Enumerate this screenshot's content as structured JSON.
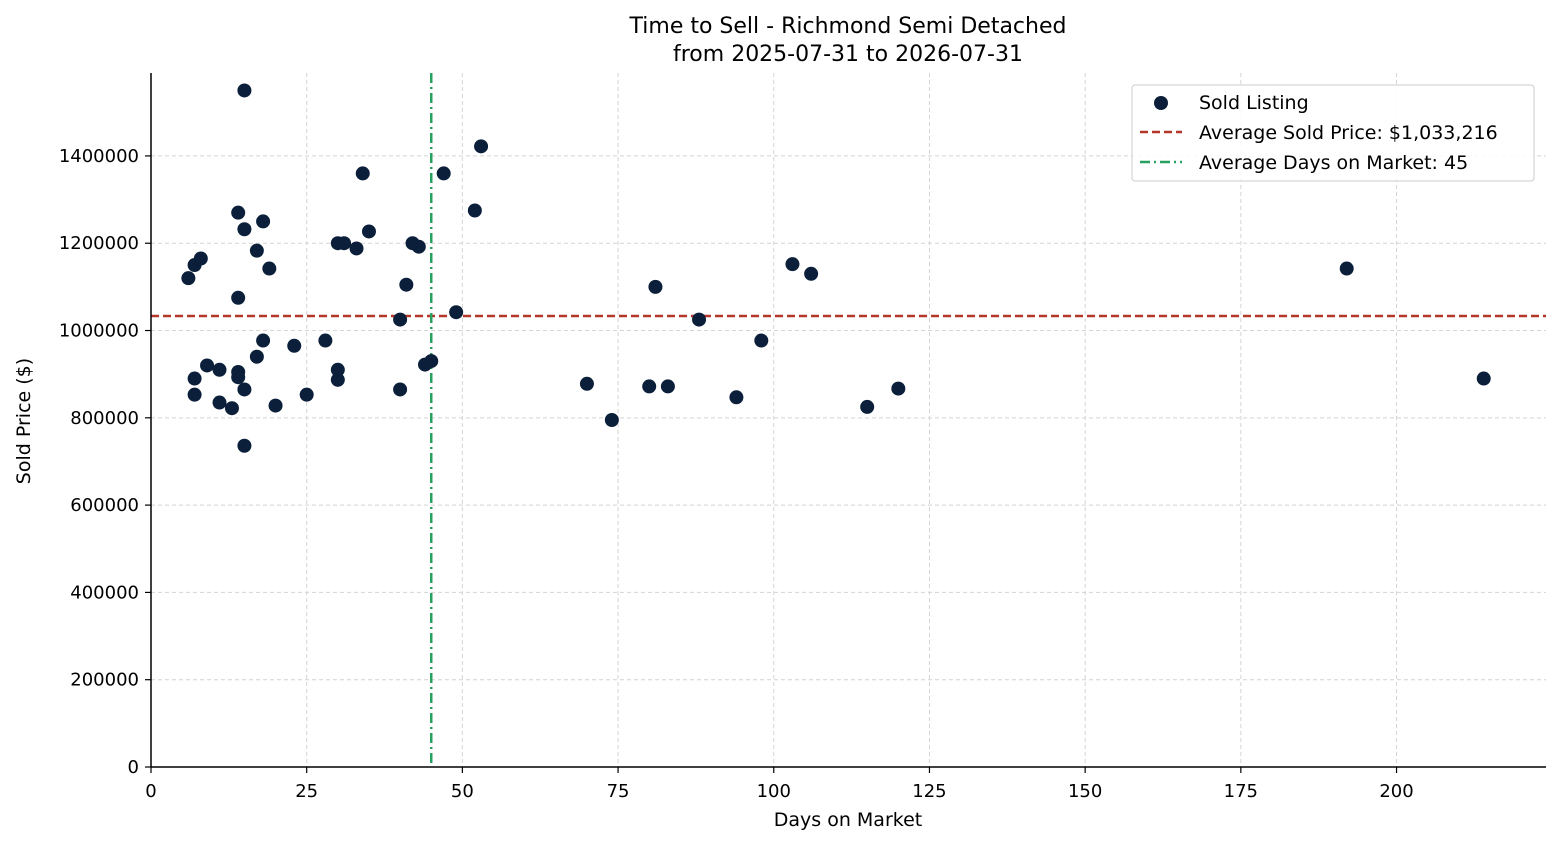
{
  "colors": {
    "point": "#0b1f3a",
    "avg_price_line": "#b5372a",
    "avg_days_line": "#27a060",
    "grid": "#d4d4d4",
    "axis": "#000000"
  },
  "chart_data": {
    "type": "scatter",
    "title": "Time to Sell - Richmond Semi Detached",
    "subtitle": "from 2025-07-31 to 2026-07-31",
    "xlabel": "Days on Market",
    "ylabel": "Sold Price ($)",
    "xlim": [
      0,
      224
    ],
    "ylim": [
      0,
      1590000
    ],
    "xticks": [
      0,
      25,
      50,
      75,
      100,
      125,
      150,
      175,
      200
    ],
    "yticks": [
      0,
      200000,
      400000,
      600000,
      800000,
      1000000,
      1200000,
      1400000
    ],
    "grid": true,
    "legend_position": "top-right",
    "legend": [
      {
        "label": "Sold Listing",
        "kind": "marker"
      },
      {
        "label": "Average Sold Price: $1,033,216",
        "kind": "dashed"
      },
      {
        "label": "Average Days on Market: 45",
        "kind": "dashdot"
      }
    ],
    "avg_price": 1033216,
    "avg_days": 45,
    "series": [
      {
        "name": "Sold Listing",
        "points": [
          [
            6,
            1120000
          ],
          [
            7,
            1150000
          ],
          [
            8,
            1165000
          ],
          [
            7,
            890000
          ],
          [
            7,
            853000
          ],
          [
            9,
            920000
          ],
          [
            11,
            910000
          ],
          [
            11,
            835000
          ],
          [
            13,
            822000
          ],
          [
            14,
            1270000
          ],
          [
            14,
            1075000
          ],
          [
            14,
            905000
          ],
          [
            14,
            893000
          ],
          [
            15,
            1550000
          ],
          [
            15,
            1232000
          ],
          [
            15,
            865000
          ],
          [
            15,
            736000
          ],
          [
            17,
            1183000
          ],
          [
            17,
            940000
          ],
          [
            18,
            1250000
          ],
          [
            18,
            977000
          ],
          [
            19,
            1142000
          ],
          [
            20,
            828000
          ],
          [
            23,
            965000
          ],
          [
            25,
            853000
          ],
          [
            28,
            977000
          ],
          [
            30,
            1200000
          ],
          [
            31,
            1200000
          ],
          [
            30,
            910000
          ],
          [
            30,
            887000
          ],
          [
            33,
            1188000
          ],
          [
            34,
            1360000
          ],
          [
            35,
            1227000
          ],
          [
            40,
            1025000
          ],
          [
            40,
            865000
          ],
          [
            41,
            1105000
          ],
          [
            42,
            1200000
          ],
          [
            43,
            1192000
          ],
          [
            44,
            922000
          ],
          [
            45,
            930000
          ],
          [
            47,
            1360000
          ],
          [
            49,
            1042000
          ],
          [
            52,
            1275000
          ],
          [
            53,
            1422000
          ],
          [
            70,
            878000
          ],
          [
            74,
            795000
          ],
          [
            80,
            872000
          ],
          [
            81,
            1100000
          ],
          [
            83,
            872000
          ],
          [
            88,
            1025000
          ],
          [
            94,
            847000
          ],
          [
            98,
            977000
          ],
          [
            103,
            1152000
          ],
          [
            106,
            1130000
          ],
          [
            115,
            825000
          ],
          [
            120,
            867000
          ],
          [
            192,
            1142000
          ],
          [
            214,
            890000
          ]
        ]
      }
    ]
  }
}
